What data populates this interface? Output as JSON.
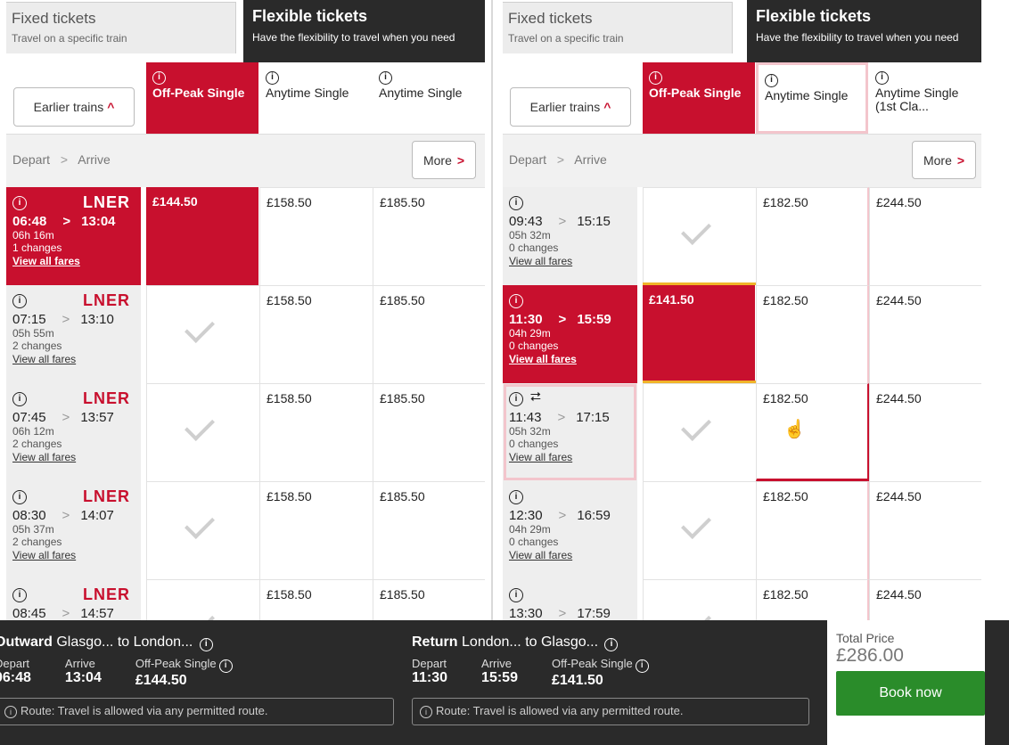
{
  "tabs": {
    "fixed_title": "Fixed tickets",
    "fixed_sub": "Travel on a specific train",
    "flex_title": "Flexible tickets",
    "flex_sub": "Have the flexibility to travel when you need"
  },
  "earlier_label": "Earlier trains",
  "depart_label": "Depart",
  "arrive_label": "Arrive",
  "more_label": "More",
  "info_glyph": "i",
  "chevron_right": ">",
  "chevron_up": "^",
  "outward_panel": {
    "columns": [
      "Off-Peak Single",
      "Anytime Single",
      "Anytime Single"
    ],
    "rows": [
      {
        "op": "LNER",
        "dep": "06:48",
        "arr": "13:04",
        "dur": "06h 16m",
        "chg": "1 changes",
        "view": "View all fares",
        "fares": [
          "£144.50",
          "£158.50",
          "£185.50"
        ]
      },
      {
        "op": "LNER",
        "dep": "07:15",
        "arr": "13:10",
        "dur": "05h 55m",
        "chg": "2 changes",
        "view": "View all fares",
        "fares": [
          "",
          "£158.50",
          "£185.50"
        ]
      },
      {
        "op": "LNER",
        "dep": "07:45",
        "arr": "13:57",
        "dur": "06h 12m",
        "chg": "2 changes",
        "view": "View all fares",
        "fares": [
          "",
          "£158.50",
          "£185.50"
        ]
      },
      {
        "op": "LNER",
        "dep": "08:30",
        "arr": "14:07",
        "dur": "05h 37m",
        "chg": "2 changes",
        "view": "View all fares",
        "fares": [
          "",
          "£158.50",
          "£185.50"
        ]
      },
      {
        "op": "LNER",
        "dep": "08:45",
        "arr": "14:57",
        "dur": "",
        "chg": "",
        "view": "",
        "fares": [
          "",
          "£158.50",
          "£185.50"
        ]
      }
    ]
  },
  "return_panel": {
    "columns": [
      "Off-Peak Single",
      "Anytime Single",
      "Anytime Single (1st Cla..."
    ],
    "rows": [
      {
        "dep": "09:43",
        "arr": "15:15",
        "dur": "05h 32m",
        "chg": "0 changes",
        "view": "View all fares",
        "fares": [
          "",
          "£182.50",
          "£244.50"
        ]
      },
      {
        "dep": "11:30",
        "arr": "15:59",
        "dur": "04h 29m",
        "chg": "0 changes",
        "view": "View all fares",
        "fares": [
          "£141.50",
          "£182.50",
          "£244.50"
        ]
      },
      {
        "dep": "11:43",
        "arr": "17:15",
        "dur": "05h 32m",
        "chg": "0 changes",
        "view": "View all fares",
        "fares": [
          "",
          "£182.50",
          "£244.50"
        ]
      },
      {
        "dep": "12:30",
        "arr": "16:59",
        "dur": "04h 29m",
        "chg": "0 changes",
        "view": "View all fares",
        "fares": [
          "",
          "£182.50",
          "£244.50"
        ]
      },
      {
        "dep": "13:30",
        "arr": "17:59",
        "dur": "",
        "chg": "",
        "view": "",
        "fares": [
          "",
          "£182.50",
          "£244.50"
        ]
      }
    ]
  },
  "footer": {
    "outward": {
      "label": "Outward",
      "route": "Glasgo... to London...",
      "depart_label": "Depart",
      "depart": "06:48",
      "arrive_label": "Arrive",
      "arrive": "13:04",
      "ticket_label": "Off-Peak Single",
      "price": "£144.50"
    },
    "return": {
      "label": "Return",
      "route": "London... to Glasgo...",
      "depart_label": "Depart",
      "depart": "11:30",
      "arrive_label": "Arrive",
      "arrive": "15:59",
      "ticket_label": "Off-Peak Single",
      "price": "£141.50"
    },
    "route_note": "Route: Travel is allowed via any permitted route.",
    "total_label": "Total Price",
    "total_value": "£286.00",
    "book_label": "Book now"
  },
  "colors": {
    "brand_red": "#c8102e",
    "dark": "#2a2a2a",
    "book_green": "#2a8c2a"
  }
}
